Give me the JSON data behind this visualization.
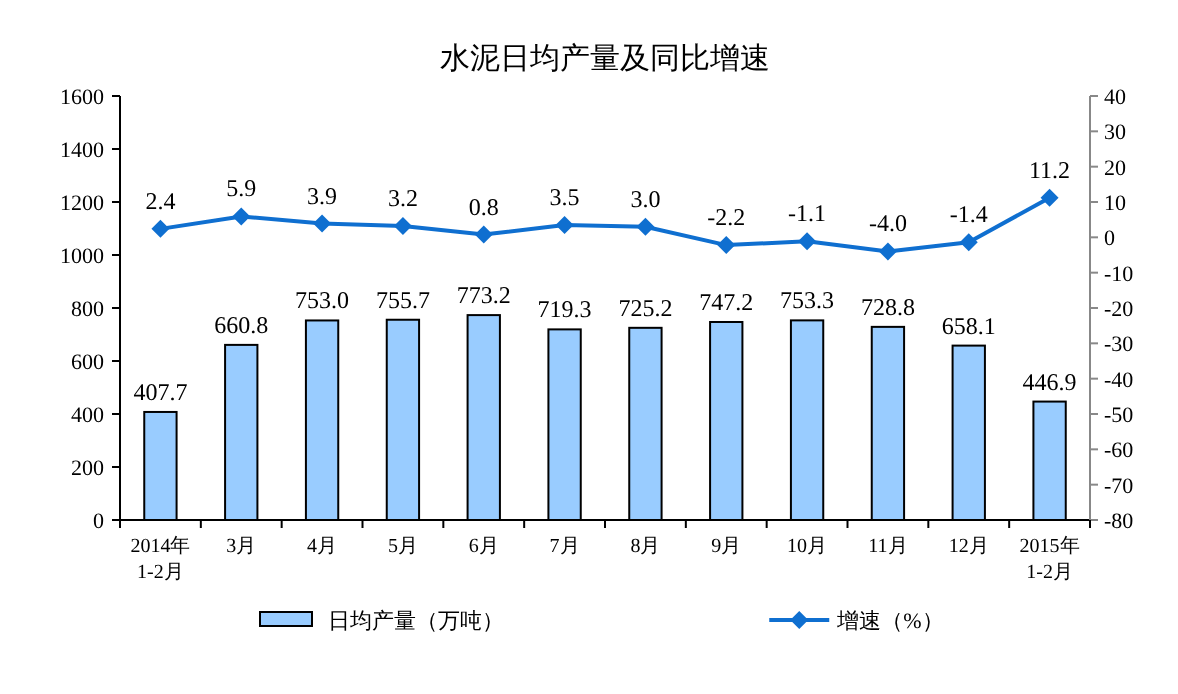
{
  "chart_data": {
    "type": "bar",
    "title": "水泥日均产量及同比增速",
    "categories": [
      "2014年\n1-2月",
      "3月",
      "4月",
      "5月",
      "6月",
      "7月",
      "8月",
      "9月",
      "10月",
      "11月",
      "12月",
      "2015年\n1-2月"
    ],
    "series": [
      {
        "name": "日均产量（万吨）",
        "color": "#99ccff",
        "values": [
          407.7,
          660.8,
          753.0,
          755.7,
          773.2,
          719.3,
          725.2,
          747.2,
          753.3,
          728.8,
          658.1,
          446.9
        ],
        "value_labels": [
          "407.7",
          "660.8",
          "753.0",
          "755.7",
          "773.2",
          "719.3",
          "725.2",
          "747.2",
          "753.3",
          "728.8",
          "658.1",
          "446.9"
        ]
      },
      {
        "name": "增速（%）",
        "type": "line",
        "axis": "y2",
        "color": "#0f6fd0",
        "marker": "diamond",
        "values": [
          2.4,
          5.9,
          3.9,
          3.2,
          0.8,
          3.5,
          3.0,
          -2.2,
          -1.1,
          -4.0,
          -1.4,
          11.2
        ],
        "value_labels": [
          "2.4",
          "5.9",
          "3.9",
          "3.2",
          "0.8",
          "3.5",
          "3.0",
          "-2.2",
          "-1.1",
          "-4.0",
          "-1.4",
          "11.2"
        ]
      }
    ],
    "ylim": [
      0,
      1600
    ],
    "yticks": [
      0,
      200,
      400,
      600,
      800,
      1000,
      1200,
      1400,
      1600
    ],
    "y2lim": [
      -80,
      40
    ],
    "y2ticks": [
      -80,
      -70,
      -60,
      -50,
      -40,
      -30,
      -20,
      -10,
      0,
      10,
      20,
      30,
      40
    ],
    "grid": false,
    "legend": "bottom"
  }
}
